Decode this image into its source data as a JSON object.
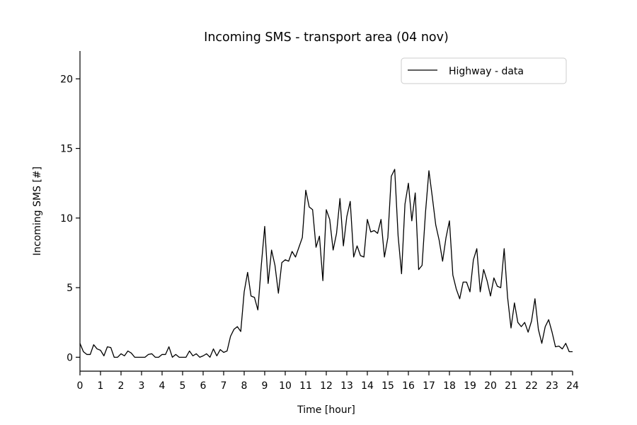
{
  "chart_data": {
    "type": "line",
    "title": "Incoming SMS - transport area (04 nov)",
    "xlabel": "Time [hour]",
    "ylabel": "Incoming SMS [#]",
    "xlim": [
      0,
      24
    ],
    "ylim": [
      -1,
      22
    ],
    "xticks": [
      "0",
      "1",
      "2",
      "3",
      "4",
      "5",
      "6",
      "7",
      "8",
      "9",
      "10",
      "11",
      "12",
      "13",
      "14",
      "15",
      "16",
      "17",
      "18",
      "19",
      "20",
      "21",
      "22",
      "23",
      "24"
    ],
    "yticks": [
      "0",
      "5",
      "10",
      "15",
      "20"
    ],
    "grid": false,
    "legend_position": "upper right",
    "colors": {
      "line": "#000000",
      "legend_border": "#cccccc"
    },
    "series": [
      {
        "name": "Highway - data",
        "x_step_hours": 0.1667,
        "values": [
          1.0,
          0.4,
          0.2,
          0.2,
          0.9,
          0.6,
          0.5,
          0.1,
          0.75,
          0.7,
          0.0,
          0.0,
          0.25,
          0.1,
          0.45,
          0.3,
          0.0,
          0.0,
          0.0,
          0.0,
          0.2,
          0.25,
          0.0,
          0.0,
          0.2,
          0.2,
          0.75,
          0.0,
          0.2,
          0.0,
          0.0,
          0.0,
          0.45,
          0.1,
          0.25,
          0.0,
          0.1,
          0.25,
          0.0,
          0.6,
          0.1,
          0.55,
          0.35,
          0.45,
          1.5,
          2.0,
          2.2,
          1.85,
          4.7,
          6.1,
          4.4,
          4.3,
          3.4,
          6.6,
          9.4,
          5.3,
          7.7,
          6.6,
          4.6,
          6.8,
          7.0,
          6.9,
          7.6,
          7.2,
          7.9,
          8.6,
          12.0,
          10.8,
          10.6,
          7.9,
          8.7,
          5.5,
          10.6,
          9.9,
          7.7,
          8.9,
          11.4,
          8.0,
          10.1,
          11.2,
          7.2,
          8.0,
          7.3,
          7.2,
          9.9,
          9.0,
          9.1,
          8.9,
          9.9,
          7.2,
          8.6,
          13.0,
          13.5,
          8.7,
          6.0,
          11.0,
          12.5,
          9.8,
          11.8,
          6.3,
          6.6,
          10.4,
          13.4,
          11.5,
          9.5,
          8.4,
          6.9,
          8.6,
          9.8,
          5.9,
          4.9,
          4.2,
          5.4,
          5.4,
          4.7,
          7.0,
          7.8,
          4.7,
          6.3,
          5.5,
          4.4,
          5.7,
          5.1,
          5.0,
          7.8,
          4.3,
          2.1,
          3.9,
          2.5,
          2.2,
          2.5,
          1.8,
          2.6,
          4.2,
          2.0,
          1.0,
          2.2,
          2.7,
          1.8,
          0.75,
          0.8,
          0.6,
          1.0,
          0.4,
          0.4
        ]
      }
    ]
  }
}
